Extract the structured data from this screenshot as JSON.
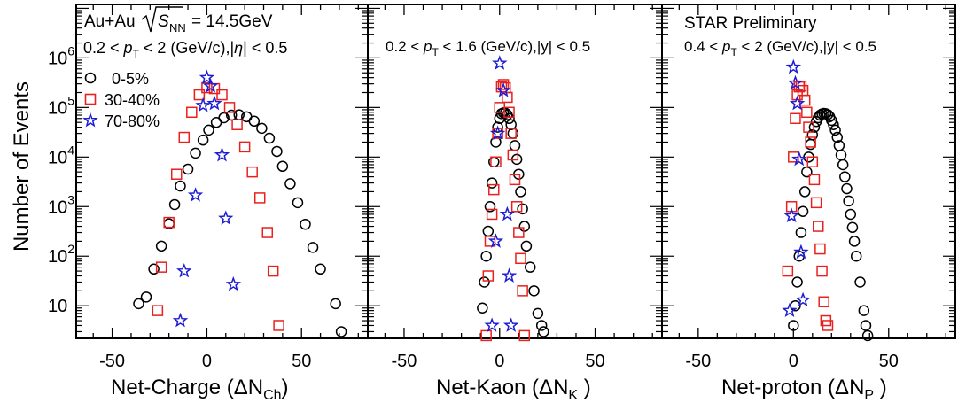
{
  "figure": {
    "ylabel": "Number of Events",
    "legend": [
      {
        "label": "0-5%",
        "marker": "circle",
        "color": "#000000"
      },
      {
        "label": "30-40%",
        "marker": "square",
        "color": "#e8211e"
      },
      {
        "label": "70-80%",
        "marker": "star",
        "color": "#1c1cd6"
      }
    ],
    "annotations": {
      "system": "Au+Au",
      "energy_symbol": "S",
      "energy_sub": "NN",
      "energy_value": "= 14.5GeV",
      "cut_charge": "0.2 < p_T < 2 (GeV/c),|η| < 0.5",
      "cut_kaon": "0.2 < p_T < 1.6 (GeV/c),|y| < 0.5",
      "cut_proton": "0.4 < p_T < 2 (GeV/c),|y| < 0.5",
      "preliminary": "STAR Preliminary"
    },
    "ytick_labels": [
      {
        "value": 10,
        "base": "10",
        "exp": ""
      },
      {
        "value": 100,
        "base": "10",
        "exp": "2"
      },
      {
        "value": 1000,
        "base": "10",
        "exp": "3"
      },
      {
        "value": 10000,
        "base": "10",
        "exp": "4"
      },
      {
        "value": 100000,
        "base": "10",
        "exp": "5"
      },
      {
        "value": 1000000,
        "base": "10",
        "exp": "6"
      }
    ],
    "xtick_labels": [
      "-50",
      "0",
      "50"
    ]
  },
  "chart_data": [
    {
      "type": "scatter",
      "xlabel": "Net-Charge (ΔN_Ch)",
      "ylabel": "Number of Events",
      "xlim": [
        -69,
        85
      ],
      "ylim": [
        2.2,
        12000000
      ],
      "yscale": "log",
      "xticks": [
        -50,
        0,
        50
      ],
      "series": [
        {
          "name": "0-5%",
          "marker": "circle",
          "color": "#000000",
          "points": [
            [
              -36,
              11
            ],
            [
              -32,
              15
            ],
            [
              -28,
              55
            ],
            [
              -24,
              160
            ],
            [
              -20,
              450
            ],
            [
              -17,
              1100
            ],
            [
              -14,
              2600
            ],
            [
              -10,
              5700
            ],
            [
              -6,
              12000
            ],
            [
              -2,
              22000
            ],
            [
              1,
              35000
            ],
            [
              5,
              50000
            ],
            [
              9,
              62000
            ],
            [
              13,
              70000
            ],
            [
              17,
              71000
            ],
            [
              21,
              65000
            ],
            [
              25,
              53000
            ],
            [
              29,
              38000
            ],
            [
              33,
              24000
            ],
            [
              37,
              13000
            ],
            [
              40,
              6500
            ],
            [
              44,
              2900
            ],
            [
              48,
              1200
            ],
            [
              52,
              440
            ],
            [
              56,
              150
            ],
            [
              60,
              55
            ],
            [
              68,
              11
            ],
            [
              71,
              3
            ]
          ]
        },
        {
          "name": "30-40%",
          "marker": "square",
          "color": "#e8211e",
          "points": [
            [
              -26,
              8
            ],
            [
              -24,
              60
            ],
            [
              -20,
              480
            ],
            [
              -16,
              4500
            ],
            [
              -12,
              25000
            ],
            [
              -8,
              80000
            ],
            [
              -4,
              180000
            ],
            [
              0,
              250000
            ],
            [
              4,
              240000
            ],
            [
              8,
              180000
            ],
            [
              12,
              100000
            ],
            [
              16,
              45000
            ],
            [
              20,
              16000
            ],
            [
              24,
              5000
            ],
            [
              28,
              1500
            ],
            [
              32,
              300
            ],
            [
              35,
              50
            ],
            [
              38,
              4
            ]
          ]
        },
        {
          "name": "70-80%",
          "marker": "star",
          "color": "#1c1cd6",
          "points": [
            [
              -14,
              5
            ],
            [
              -12,
              50
            ],
            [
              -6,
              1700
            ],
            [
              -2,
              110000
            ],
            [
              0,
              400000
            ],
            [
              2,
              270000
            ],
            [
              4,
              120000
            ],
            [
              8,
              11000
            ],
            [
              10,
              580
            ],
            [
              14,
              27
            ]
          ]
        }
      ]
    },
    {
      "type": "scatter",
      "xlabel": "Net-Kaon (ΔN_K)",
      "ylabel": "",
      "xlim": [
        -69,
        85
      ],
      "ylim": [
        2.2,
        12000000
      ],
      "yscale": "log",
      "xticks": [
        -50,
        0,
        50
      ],
      "series": [
        {
          "name": "0-5%",
          "marker": "circle",
          "color": "#000000",
          "points": [
            [
              -9,
              9
            ],
            [
              -8,
              30
            ],
            [
              -7,
              100
            ],
            [
              -6,
              320
            ],
            [
              -5,
              1000
            ],
            [
              -4,
              3000
            ],
            [
              -3,
              8000
            ],
            [
              -2,
              20000
            ],
            [
              -1,
              40000
            ],
            [
              0,
              60000
            ],
            [
              1,
              75000
            ],
            [
              2,
              78000
            ],
            [
              3,
              77000
            ],
            [
              4,
              71000
            ],
            [
              5,
              60000
            ],
            [
              6,
              45000
            ],
            [
              7,
              30000
            ],
            [
              8,
              17000
            ],
            [
              9,
              9000
            ],
            [
              10,
              4500
            ],
            [
              11,
              2000
            ],
            [
              12,
              900
            ],
            [
              13,
              400
            ],
            [
              14,
              160
            ],
            [
              16,
              60
            ],
            [
              18,
              20
            ],
            [
              20,
              7
            ],
            [
              22,
              4
            ],
            [
              23,
              3
            ]
          ]
        },
        {
          "name": "30-40%",
          "marker": "square",
          "color": "#e8211e",
          "points": [
            [
              -7,
              2.5
            ],
            [
              -6,
              40
            ],
            [
              -5,
              200
            ],
            [
              -4,
              700
            ],
            [
              -3,
              2200
            ],
            [
              -2,
              8000
            ],
            [
              -1,
              30000
            ],
            [
              0,
              100000
            ],
            [
              1,
              260000
            ],
            [
              2,
              290000
            ],
            [
              3,
              250000
            ],
            [
              4,
              160000
            ],
            [
              5,
              80000
            ],
            [
              6,
              30000
            ],
            [
              7,
              11000
            ],
            [
              8,
              3500
            ],
            [
              9,
              1000
            ],
            [
              10,
              300
            ],
            [
              11,
              90
            ],
            [
              12,
              20
            ],
            [
              13,
              2.5
            ]
          ]
        },
        {
          "name": "70-80%",
          "marker": "star",
          "color": "#1c1cd6",
          "points": [
            [
              -4,
              4
            ],
            [
              -2,
              200
            ],
            [
              0,
              780000
            ],
            [
              2,
              220000
            ],
            [
              4,
              700
            ],
            [
              6,
              4
            ],
            [
              5,
              40
            ],
            [
              -1,
              30000
            ]
          ]
        }
      ]
    },
    {
      "type": "scatter",
      "xlabel": "Net-proton (ΔN_P)",
      "ylabel": "",
      "xlim": [
        -69,
        85
      ],
      "ylim": [
        2.2,
        12000000
      ],
      "yscale": "log",
      "xticks": [
        -50,
        0,
        50
      ],
      "series": [
        {
          "name": "0-5%",
          "marker": "circle",
          "color": "#000000",
          "points": [
            [
              0,
              4
            ],
            [
              1,
              10
            ],
            [
              2,
              30
            ],
            [
              3,
              100
            ],
            [
              4,
              300
            ],
            [
              5,
              800
            ],
            [
              6,
              2000
            ],
            [
              7,
              5000
            ],
            [
              8,
              10000
            ],
            [
              9,
              18000
            ],
            [
              10,
              28000
            ],
            [
              11,
              40000
            ],
            [
              12,
              52000
            ],
            [
              13,
              62000
            ],
            [
              14,
              70000
            ],
            [
              15,
              74000
            ],
            [
              16,
              76000
            ],
            [
              17,
              75000
            ],
            [
              18,
              72000
            ],
            [
              19,
              65000
            ],
            [
              20,
              55000
            ],
            [
              21,
              45000
            ],
            [
              22,
              35000
            ],
            [
              23,
              25000
            ],
            [
              24,
              17000
            ],
            [
              25,
              11000
            ],
            [
              26,
              7000
            ],
            [
              27,
              4000
            ],
            [
              28,
              2300
            ],
            [
              29,
              1300
            ],
            [
              30,
              700
            ],
            [
              31,
              380
            ],
            [
              32,
              200
            ],
            [
              33,
              100
            ],
            [
              35,
              30
            ],
            [
              37,
              8
            ],
            [
              38,
              4
            ],
            [
              39,
              2.5
            ]
          ]
        },
        {
          "name": "30-40%",
          "marker": "square",
          "color": "#e8211e",
          "points": [
            [
              -3,
              50
            ],
            [
              -1,
              1000
            ],
            [
              0,
              10000
            ],
            [
              1,
              60000
            ],
            [
              2,
              180000
            ],
            [
              3,
              260000
            ],
            [
              4,
              270000
            ],
            [
              5,
              220000
            ],
            [
              6,
              140000
            ],
            [
              7,
              80000
            ],
            [
              8,
              40000
            ],
            [
              9,
              20000
            ],
            [
              10,
              8000
            ],
            [
              11,
              3500
            ],
            [
              12,
              1200
            ],
            [
              13,
              400
            ],
            [
              14,
              140
            ],
            [
              15,
              50
            ],
            [
              16,
              12
            ],
            [
              17,
              5
            ],
            [
              18,
              4
            ]
          ]
        },
        {
          "name": "70-80%",
          "marker": "star",
          "color": "#1c1cd6",
          "points": [
            [
              -2,
              8
            ],
            [
              -1,
              650
            ],
            [
              0,
              650000
            ],
            [
              1,
              310000
            ],
            [
              2,
              120000
            ],
            [
              3,
              9000
            ],
            [
              4,
              120
            ],
            [
              5,
              13
            ]
          ]
        }
      ]
    }
  ]
}
